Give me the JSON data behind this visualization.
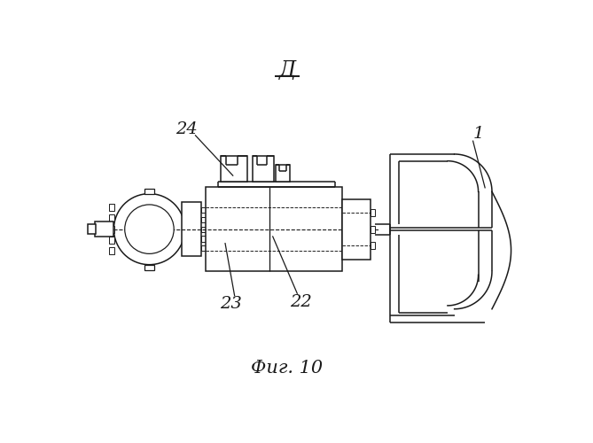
{
  "title": "Фиг. 10",
  "view_label": "Д",
  "label_1": "1",
  "label_22": "22",
  "label_23": "23",
  "label_24": "24",
  "bg_color": "#ffffff",
  "line_color": "#1a1a1a",
  "linewidth": 1.1,
  "dashed_lw": 0.8
}
